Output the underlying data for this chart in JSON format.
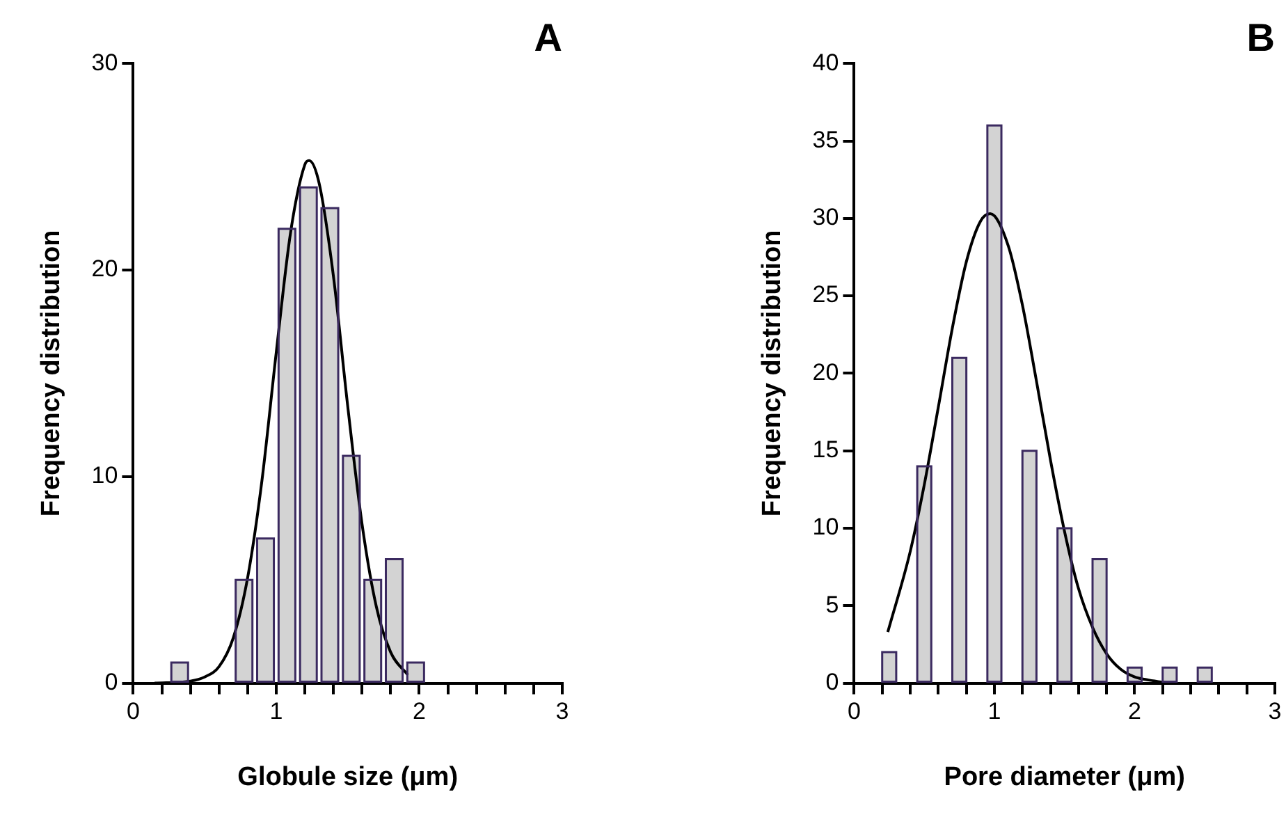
{
  "chart_data": [
    {
      "type": "histogram",
      "title": "A",
      "xlabel": "Globule size (μm)",
      "ylabel": "Frequency distribution",
      "color": "#d3d3d3",
      "bins": [
        0.1,
        0.25,
        0.4,
        0.55,
        0.7,
        0.85,
        1.0,
        1.15,
        1.3,
        1.45,
        1.6,
        1.75,
        1.9,
        2.05
      ],
      "values": [
        0,
        1,
        0,
        0,
        5,
        7,
        22,
        24,
        23,
        11,
        5,
        6,
        1
      ],
      "series": [
        {
          "type": "line",
          "color": "#000000",
          "x": [
            0.15,
            0.4,
            0.5,
            0.6,
            0.7,
            0.8,
            0.9,
            1.0,
            1.1,
            1.2,
            1.23,
            1.3,
            1.4,
            1.5,
            1.6,
            1.7,
            1.8,
            1.92
          ],
          "values": [
            0.0,
            0.1,
            0.3,
            0.8,
            2.2,
            5.1,
            9.8,
            16.0,
            21.8,
            25.1,
            25.3,
            24.2,
            19.7,
            13.4,
            7.7,
            3.7,
            1.5,
            0.4
          ]
        }
      ],
      "xlim": [
        0,
        3
      ],
      "ylim": [
        0,
        30
      ],
      "xticks": [
        0,
        {
          "value": 0.2,
          "label": null
        },
        {
          "value": 0.4,
          "label": null
        },
        {
          "value": 0.6,
          "label": null
        },
        {
          "value": 0.8,
          "label": null
        },
        1,
        {
          "value": 1.2,
          "label": null
        },
        {
          "value": 1.4,
          "label": null
        },
        {
          "value": 1.6,
          "label": null
        },
        {
          "value": 1.8,
          "label": null
        },
        2,
        {
          "value": 2.2,
          "label": null
        },
        {
          "value": 2.4,
          "label": null
        },
        {
          "value": 2.6,
          "label": null
        },
        {
          "value": 2.8,
          "label": null
        },
        3
      ],
      "yticks": [
        0,
        10,
        20,
        30
      ],
      "grid": false,
      "legend": false
    },
    {
      "type": "histogram",
      "title": "B",
      "xlabel": "Pore diameter (μm)",
      "ylabel": "Frequency distribution",
      "color": "#d3d3d3",
      "bins": [
        0.125,
        0.375,
        0.625,
        0.875,
        1.125,
        1.375,
        1.625,
        1.875,
        2.125,
        2.375,
        2.625
      ],
      "values": [
        2,
        14,
        21,
        36,
        15,
        10,
        8,
        1,
        1,
        1
      ],
      "series": [
        {
          "type": "line",
          "color": "#000000",
          "x": [
            0.24,
            0.4,
            0.5,
            0.6,
            0.7,
            0.8,
            0.9,
            0.97,
            1.1,
            1.2,
            1.3,
            1.4,
            1.5,
            1.6,
            1.7,
            1.8,
            1.9,
            2.0,
            2.1,
            2.25
          ],
          "values": [
            3.3,
            8.5,
            12.8,
            17.8,
            22.9,
            27.2,
            29.8,
            30.3,
            28.2,
            24.4,
            19.5,
            14.4,
            9.8,
            6.1,
            3.6,
            1.9,
            0.9,
            0.4,
            0.2,
            0.0
          ]
        }
      ],
      "xlim": [
        0,
        3
      ],
      "ylim": [
        0,
        40
      ],
      "xticks": [
        0,
        {
          "value": 0.2,
          "label": null
        },
        {
          "value": 0.4,
          "label": null
        },
        {
          "value": 0.6,
          "label": null
        },
        {
          "value": 0.8,
          "label": null
        },
        1,
        {
          "value": 1.2,
          "label": null
        },
        {
          "value": 1.4,
          "label": null
        },
        {
          "value": 1.6,
          "label": null
        },
        {
          "value": 1.8,
          "label": null
        },
        2,
        {
          "value": 2.2,
          "label": null
        },
        {
          "value": 2.4,
          "label": null
        },
        {
          "value": 2.6,
          "label": null
        },
        {
          "value": 2.8,
          "label": null
        },
        3
      ],
      "yticks": [
        0,
        5,
        10,
        15,
        20,
        25,
        30,
        35,
        40
      ],
      "grid": false,
      "legend": false
    }
  ]
}
